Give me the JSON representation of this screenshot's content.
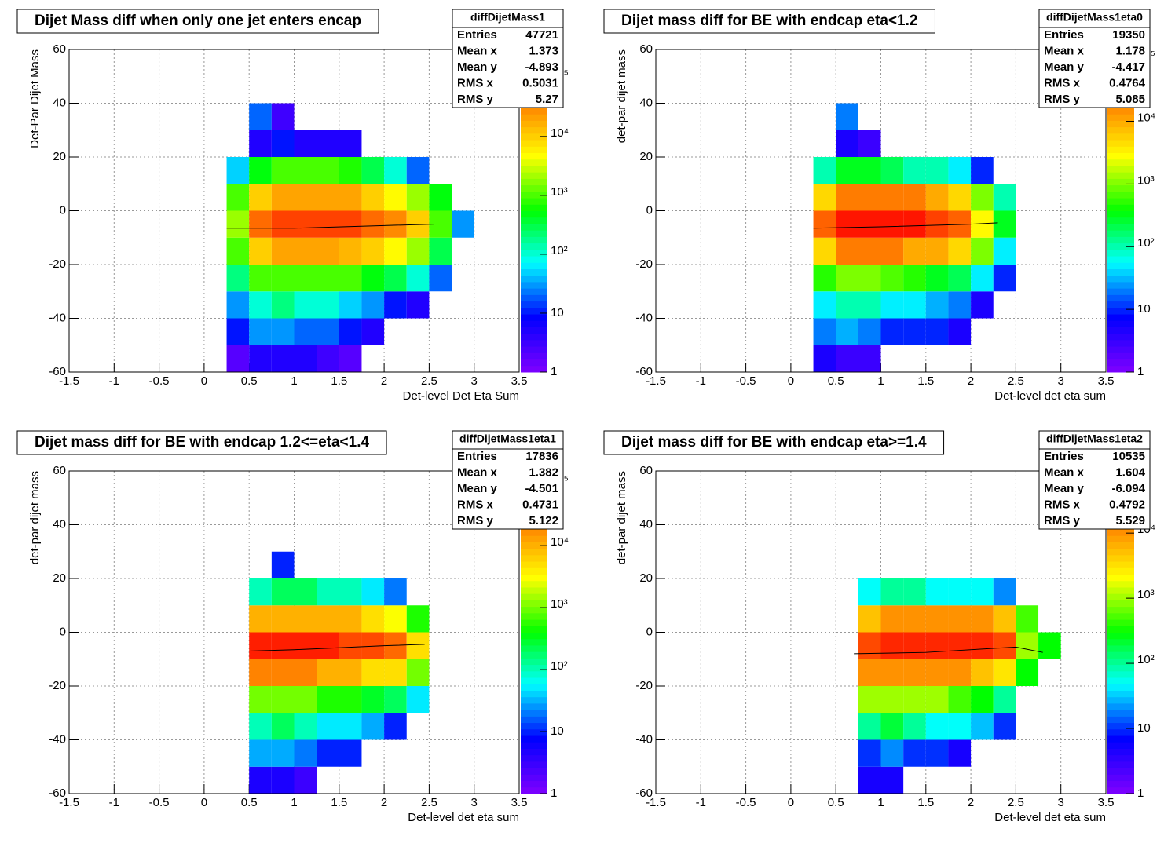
{
  "chart_data": [
    {
      "type": "heatmap",
      "title": "Dijet Mass diff when only one jet enters encap",
      "xlabel": "Det-level Det Eta Sum",
      "ylabel": "Det-Par Dijet Mass",
      "xlim": [
        -1.5,
        3.5
      ],
      "ylim": [
        -60,
        60
      ],
      "xticks": [
        -1.5,
        -1,
        -0.5,
        0,
        0.5,
        1,
        1.5,
        2,
        2.5,
        3,
        3.5
      ],
      "yticks": [
        -60,
        -40,
        -20,
        0,
        20,
        40,
        60
      ],
      "grid": true,
      "log_z": true,
      "zlim": [
        1,
        300000
      ],
      "zticks": [
        1,
        10,
        {
          "value": 100,
          "label": "10²"
        },
        {
          "value": 1000,
          "label": "10³"
        },
        {
          "value": 10000,
          "label": "10⁴"
        },
        {
          "value": 100000,
          "label": "10⁵"
        }
      ],
      "stats": {
        "name": "diffDijetMass1",
        "rows": [
          {
            "label": "Entries",
            "value": 47721
          },
          {
            "label": "Mean x",
            "value": 1.373
          },
          {
            "label": "Mean y",
            "value": -4.893
          },
          {
            "label": "RMS x",
            "value": 0.5031
          },
          {
            "label": "RMS y",
            "value": 5.27
          }
        ]
      },
      "xbins": [
        0.25,
        0.5,
        0.75,
        1,
        1.25,
        1.5,
        1.75,
        2,
        2.25,
        2.5,
        2.75,
        3
      ],
      "ybins": [
        -60,
        -50,
        -40,
        -30,
        -20,
        -10,
        0,
        10,
        20,
        30,
        40
      ],
      "z": [
        [
          2,
          5,
          5,
          5,
          3,
          2,
          null,
          null,
          null,
          null,
          null
        ],
        [
          10,
          30,
          30,
          20,
          20,
          10,
          5,
          null,
          null,
          null,
          null
        ],
        [
          30,
          100,
          200,
          100,
          100,
          50,
          30,
          10,
          5,
          null,
          null
        ],
        [
          200,
          1000,
          1000,
          1000,
          1000,
          1000,
          500,
          300,
          100,
          20,
          null
        ],
        [
          1000,
          10000,
          20000,
          20000,
          20000,
          15000,
          10000,
          5000,
          2000,
          300,
          null
        ],
        [
          2000,
          50000,
          100000,
          100000,
          100000,
          100000,
          50000,
          30000,
          10000,
          1000,
          30
        ],
        [
          1000,
          10000,
          20000,
          20000,
          20000,
          20000,
          10000,
          5000,
          2000,
          500,
          null
        ],
        [
          50,
          500,
          1000,
          1000,
          1000,
          700,
          300,
          100,
          20,
          null,
          null
        ],
        [
          null,
          5,
          10,
          5,
          5,
          5,
          null,
          null,
          null,
          null,
          null
        ],
        [
          null,
          20,
          3,
          null,
          null,
          null,
          null,
          null,
          null,
          null,
          null
        ]
      ],
      "profile": {
        "x": [
          0.25,
          1,
          2,
          2.55
        ],
        "y": [
          -6.5,
          -6.5,
          -5.5,
          -5
        ]
      }
    },
    {
      "type": "heatmap",
      "title": "Dijet mass diff for BE with endcap eta<1.2",
      "xlabel": "Det-level det eta sum",
      "ylabel": "det-par dijet mass",
      "xlim": [
        -1.5,
        3.5
      ],
      "ylim": [
        -60,
        60
      ],
      "xticks": [
        -1.5,
        -1,
        -0.5,
        0,
        0.5,
        1,
        1.5,
        2,
        2.5,
        3,
        3.5
      ],
      "yticks": [
        -60,
        -40,
        -20,
        0,
        20,
        40,
        60
      ],
      "grid": true,
      "log_z": true,
      "zlim": [
        1,
        140000
      ],
      "zticks": [
        1,
        10,
        {
          "value": 100,
          "label": "10²"
        },
        {
          "value": 1000,
          "label": "10³"
        },
        {
          "value": 10000,
          "label": "10⁴"
        },
        {
          "value": 100000,
          "label": "10⁵"
        }
      ],
      "stats": {
        "name": "diffDijetMass1eta0",
        "rows": [
          {
            "label": "Entries",
            "value": 19350
          },
          {
            "label": "Mean x",
            "value": 1.178
          },
          {
            "label": "Mean y",
            "value": -4.417
          },
          {
            "label": "RMS x",
            "value": 0.4764
          },
          {
            "label": "RMS y",
            "value": 5.085
          }
        ]
      },
      "xbins": [
        0.25,
        0.5,
        0.75,
        1,
        1.25,
        1.5,
        1.75,
        2,
        2.25,
        2.5,
        2.75,
        3
      ],
      "ybins": [
        -60,
        -50,
        -40,
        -30,
        -20,
        -10,
        0,
        10,
        20,
        30,
        40
      ],
      "z": [
        [
          5,
          3,
          3,
          null,
          null,
          null,
          null,
          null,
          null,
          null,
          null
        ],
        [
          20,
          30,
          20,
          10,
          10,
          10,
          5,
          null,
          null,
          null,
          null
        ],
        [
          50,
          100,
          100,
          50,
          50,
          30,
          20,
          5,
          null,
          null,
          null
        ],
        [
          500,
          1000,
          1000,
          700,
          500,
          300,
          200,
          50,
          10,
          null,
          null
        ],
        [
          5000,
          20000,
          20000,
          20000,
          10000,
          10000,
          5000,
          1000,
          50,
          null,
          null
        ],
        [
          30000,
          100000,
          100000,
          100000,
          100000,
          50000,
          30000,
          3000,
          300,
          null,
          null
        ],
        [
          5000,
          20000,
          20000,
          20000,
          20000,
          10000,
          5000,
          1000,
          100,
          null,
          null
        ],
        [
          100,
          300,
          300,
          200,
          100,
          100,
          50,
          10,
          null,
          null,
          null
        ],
        [
          null,
          5,
          3,
          null,
          null,
          null,
          null,
          null,
          null,
          null,
          null
        ],
        [
          null,
          20,
          null,
          null,
          null,
          null,
          null,
          null,
          null,
          null,
          null
        ]
      ],
      "profile": {
        "x": [
          0.25,
          1,
          2,
          2.3
        ],
        "y": [
          -6.5,
          -6,
          -5,
          -4.5
        ]
      }
    },
    {
      "type": "heatmap",
      "title": "Dijet mass diff for BE with endcap 1.2<=eta<1.4",
      "xlabel": "Det-level det eta sum",
      "ylabel": "det-par dijet mass",
      "xlim": [
        -1.5,
        3.5
      ],
      "ylim": [
        -60,
        60
      ],
      "xticks": [
        -1.5,
        -1,
        -0.5,
        0,
        0.5,
        1,
        1.5,
        2,
        2.5,
        3,
        3.5
      ],
      "yticks": [
        -60,
        -40,
        -20,
        0,
        20,
        40,
        60
      ],
      "grid": true,
      "log_z": true,
      "zlim": [
        1,
        160000
      ],
      "zticks": [
        1,
        10,
        {
          "value": 100,
          "label": "10²"
        },
        {
          "value": 1000,
          "label": "10³"
        },
        {
          "value": 10000,
          "label": "10⁴"
        },
        {
          "value": 100000,
          "label": "10⁵"
        }
      ],
      "stats": {
        "name": "diffDijetMass1eta1",
        "rows": [
          {
            "label": "Entries",
            "value": 17836
          },
          {
            "label": "Mean x",
            "value": 1.382
          },
          {
            "label": "Mean y",
            "value": -4.501
          },
          {
            "label": "RMS x",
            "value": 0.4731
          },
          {
            "label": "RMS y",
            "value": 5.122
          }
        ]
      },
      "xbins": [
        0.25,
        0.5,
        0.75,
        1,
        1.25,
        1.5,
        1.75,
        2,
        2.25,
        2.5,
        2.75,
        3
      ],
      "ybins": [
        -60,
        -50,
        -40,
        -30,
        -20,
        -10,
        0,
        10,
        20,
        30,
        40
      ],
      "z": [
        [
          null,
          5,
          5,
          3,
          null,
          null,
          null,
          null,
          null,
          null,
          null
        ],
        [
          null,
          30,
          30,
          20,
          10,
          10,
          null,
          null,
          null,
          null,
          null
        ],
        [
          null,
          100,
          200,
          100,
          50,
          50,
          30,
          10,
          null,
          null,
          null
        ],
        [
          null,
          1000,
          1000,
          1000,
          500,
          500,
          300,
          200,
          50,
          null,
          null
        ],
        [
          null,
          20000,
          20000,
          20000,
          10000,
          10000,
          5000,
          5000,
          1000,
          null,
          null
        ],
        [
          null,
          100000,
          100000,
          100000,
          100000,
          50000,
          50000,
          30000,
          5000,
          null,
          null
        ],
        [
          null,
          10000,
          10000,
          10000,
          10000,
          10000,
          5000,
          3000,
          500,
          null,
          null
        ],
        [
          null,
          100,
          200,
          200,
          100,
          100,
          50,
          20,
          null,
          null,
          null
        ],
        [
          null,
          null,
          10,
          null,
          null,
          null,
          null,
          null,
          null,
          null,
          null
        ],
        [
          null,
          null,
          null,
          null,
          null,
          null,
          null,
          null,
          null,
          null,
          null
        ]
      ],
      "profile": {
        "x": [
          0.5,
          1,
          2,
          2.45
        ],
        "y": [
          -7,
          -6.5,
          -5,
          -4.5
        ]
      }
    },
    {
      "type": "heatmap",
      "title": "Dijet mass diff for BE with endcap eta>=1.4",
      "xlabel": "Det-level det eta sum",
      "ylabel": "det-par dijet mass",
      "xlim": [
        -1.5,
        3.5
      ],
      "ylim": [
        -60,
        60
      ],
      "xticks": [
        -1.5,
        -1,
        -0.5,
        0,
        0.5,
        1,
        1.5,
        2,
        2.5,
        3,
        3.5
      ],
      "yticks": [
        -60,
        -40,
        -20,
        0,
        20,
        40,
        60
      ],
      "grid": true,
      "log_z": true,
      "zlim": [
        1,
        90000
      ],
      "zticks": [
        1,
        10,
        {
          "value": 100,
          "label": "10²"
        },
        {
          "value": 1000,
          "label": "10³"
        },
        {
          "value": 10000,
          "label": "10⁴"
        }
      ],
      "stats": {
        "name": "diffDijetMass1eta2",
        "rows": [
          {
            "label": "Entries",
            "value": 10535
          },
          {
            "label": "Mean x",
            "value": 1.604
          },
          {
            "label": "Mean y",
            "value": -6.094
          },
          {
            "label": "RMS x",
            "value": 0.4792
          },
          {
            "label": "RMS y",
            "value": 5.529
          }
        ]
      },
      "xbins": [
        0.25,
        0.5,
        0.75,
        1,
        1.25,
        1.5,
        1.75,
        2,
        2.25,
        2.5,
        2.75,
        3
      ],
      "ybins": [
        -60,
        -50,
        -40,
        -30,
        -20,
        -10,
        0,
        10,
        20,
        30,
        40
      ],
      "z": [
        [
          null,
          null,
          5,
          5,
          null,
          null,
          null,
          null,
          null,
          null,
          null
        ],
        [
          null,
          null,
          10,
          20,
          10,
          10,
          5,
          null,
          null,
          null,
          null
        ],
        [
          null,
          null,
          100,
          200,
          100,
          50,
          50,
          30,
          10,
          null,
          null
        ],
        [
          null,
          null,
          1000,
          1000,
          1000,
          1000,
          500,
          300,
          100,
          null,
          null
        ],
        [
          null,
          null,
          10000,
          10000,
          10000,
          10000,
          10000,
          5000,
          3000,
          300,
          null
        ],
        [
          null,
          null,
          30000,
          50000,
          50000,
          50000,
          50000,
          50000,
          30000,
          1000,
          300
        ],
        [
          null,
          null,
          5000,
          10000,
          10000,
          10000,
          10000,
          10000,
          5000,
          500,
          null
        ],
        [
          null,
          null,
          50,
          100,
          100,
          50,
          50,
          50,
          20,
          null,
          null
        ],
        [
          null,
          null,
          null,
          null,
          null,
          null,
          null,
          null,
          null,
          null,
          null
        ],
        [
          null,
          null,
          null,
          null,
          null,
          null,
          null,
          null,
          null,
          null,
          null
        ]
      ],
      "profile": {
        "x": [
          0.7,
          1.5,
          2.5,
          2.8
        ],
        "y": [
          -8,
          -7.5,
          -5.5,
          -7.5
        ]
      }
    }
  ]
}
